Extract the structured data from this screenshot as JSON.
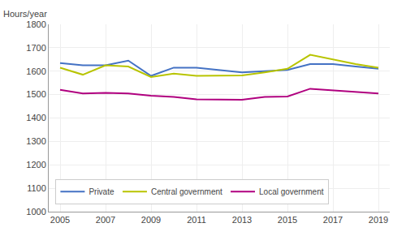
{
  "chart_data": {
    "type": "line",
    "ylabel": "Hours/year",
    "x": [
      2005,
      2006,
      2007,
      2008,
      2009,
      2010,
      2011,
      2012,
      2013,
      2014,
      2015,
      2016,
      2017,
      2018,
      2019
    ],
    "series": [
      {
        "name": "Private",
        "color": "#4472c4",
        "values": [
          1635,
          1625,
          1625,
          1645,
          1580,
          1615,
          1615,
          1605,
          1595,
          1600,
          1605,
          1630,
          1630,
          1620,
          1610
        ]
      },
      {
        "name": "Central government",
        "color": "#b8c400",
        "values": [
          1615,
          1585,
          1625,
          1620,
          1575,
          1590,
          1580,
          1580,
          1582,
          1595,
          1610,
          1670,
          1650,
          1630,
          1615
        ]
      },
      {
        "name": "Local government",
        "color": "#b0007f",
        "values": [
          1520,
          1505,
          1507,
          1505,
          1495,
          1490,
          1480,
          1478,
          1478,
          1490,
          1492,
          1525,
          1518,
          1510,
          1505
        ]
      }
    ],
    "xlim": [
      2004.5,
      2019.5
    ],
    "xticks": [
      2005,
      2007,
      2009,
      2011,
      2013,
      2015,
      2017,
      2019
    ],
    "ylim": [
      1000,
      1800
    ],
    "yticks": [
      1000,
      1100,
      1200,
      1300,
      1400,
      1500,
      1600,
      1700,
      1800
    ],
    "grid": true,
    "legend": "lower left"
  }
}
